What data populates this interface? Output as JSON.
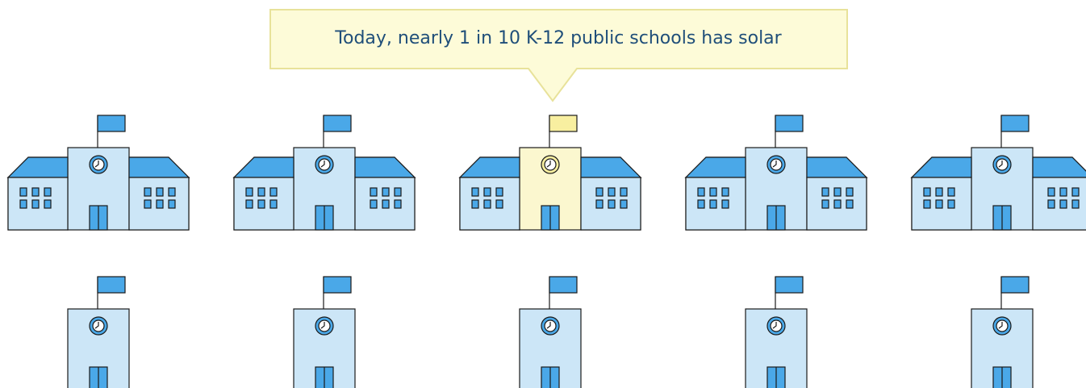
{
  "callout": {
    "text": "Today, nearly 1 in 10 K-12 public schools has solar"
  }
}
